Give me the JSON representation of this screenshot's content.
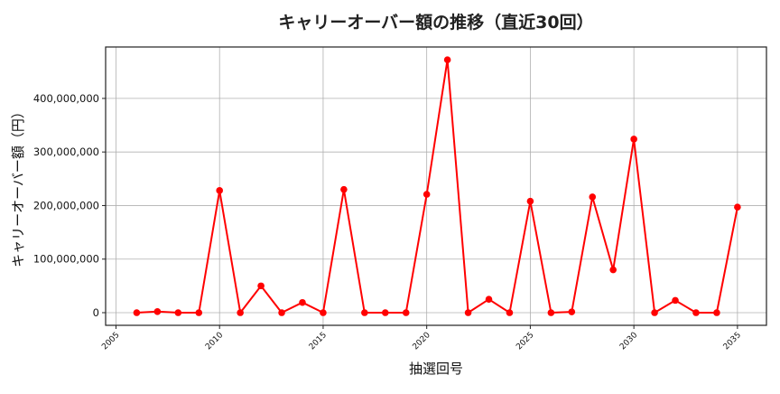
{
  "chart_data": {
    "type": "line",
    "title": "キャリーオーバー額の推移（直近30回）",
    "xlabel": "抽選回号",
    "ylabel": "キャリーオーバー額（円）",
    "x": [
      2006,
      2007,
      2008,
      2009,
      2010,
      2011,
      2012,
      2013,
      2014,
      2015,
      2016,
      2017,
      2018,
      2019,
      2020,
      2021,
      2022,
      2023,
      2024,
      2025,
      2026,
      2027,
      2028,
      2029,
      2030,
      2031,
      2032,
      2033,
      2034,
      2035
    ],
    "series": [
      {
        "name": "キャリーオーバー額",
        "color": "#ff0000",
        "marker": "circle",
        "values": [
          0,
          2000000,
          0,
          0,
          228000000,
          0,
          50000000,
          0,
          19000000,
          0,
          230000000,
          0,
          0,
          0,
          221000000,
          472000000,
          0,
          25000000,
          0,
          208000000,
          0,
          1500000,
          216000000,
          80000000,
          324000000,
          0,
          23000000,
          0,
          0,
          197000000
        ]
      }
    ],
    "xticks": [
      2005,
      2010,
      2015,
      2020,
      2025,
      2030,
      2035
    ],
    "xtick_labels": [
      "2005",
      "2010",
      "2015",
      "2020",
      "2025",
      "2030",
      "2035"
    ],
    "yticks": [
      0,
      100000000,
      200000000,
      300000000,
      400000000
    ],
    "ytick_labels": [
      "0",
      "100,000,000",
      "200,000,000",
      "300,000,000",
      "400,000,000"
    ],
    "xlim": [
      2004.5,
      2036.4
    ],
    "ylim": [
      -23600000,
      496000000
    ],
    "grid": true,
    "legend": "none"
  }
}
